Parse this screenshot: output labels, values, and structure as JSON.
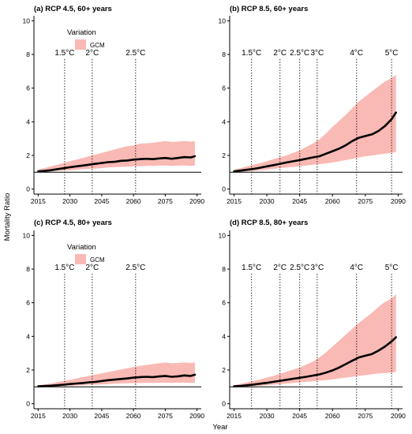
{
  "figure": {
    "shared_xlabel": "Year",
    "shared_ylabel": "Mortality Ratio"
  },
  "colors": {
    "band": "#f9b9b4",
    "line": "#000000",
    "reference": "#000000"
  },
  "chart_data": [
    {
      "type": "line",
      "title": "(a) RCP 4.5, 60+ years",
      "xlim": [
        2013,
        2092
      ],
      "ylim": [
        -0.3,
        10.3
      ],
      "xticks": [
        2015,
        2030,
        2045,
        2060,
        2075,
        2090
      ],
      "yticks": [
        0,
        2,
        4,
        6,
        8,
        10
      ],
      "reference_line": 1,
      "legend": {
        "title": "Variation",
        "entry": "GCM",
        "placement": "top-left"
      },
      "thresholds": [
        {
          "label": "1.5°C",
          "year": 2027.5
        },
        {
          "label": "2°C",
          "year": 2040.5
        },
        {
          "label": "2.5°C",
          "year": 2061
        }
      ],
      "series": [
        {
          "x": [
            2015,
            2018,
            2021,
            2024,
            2027,
            2030,
            2033,
            2036,
            2039,
            2042,
            2045,
            2048,
            2051,
            2054,
            2057,
            2060,
            2063,
            2066,
            2069,
            2072,
            2075,
            2078,
            2081,
            2084,
            2087,
            2089
          ],
          "mean": [
            1.05,
            1.08,
            1.12,
            1.18,
            1.24,
            1.3,
            1.35,
            1.4,
            1.45,
            1.5,
            1.55,
            1.6,
            1.62,
            1.68,
            1.7,
            1.75,
            1.78,
            1.8,
            1.78,
            1.82,
            1.85,
            1.8,
            1.85,
            1.9,
            1.88,
            1.95
          ],
          "lower": [
            1.0,
            1.0,
            1.05,
            1.08,
            1.1,
            1.12,
            1.15,
            1.18,
            1.2,
            1.22,
            1.25,
            1.28,
            1.3,
            1.32,
            1.33,
            1.35,
            1.36,
            1.38,
            1.38,
            1.4,
            1.4,
            1.38,
            1.4,
            1.4,
            1.38,
            1.4
          ],
          "upper": [
            1.15,
            1.25,
            1.35,
            1.45,
            1.55,
            1.65,
            1.75,
            1.85,
            1.95,
            2.05,
            2.15,
            2.25,
            2.35,
            2.45,
            2.55,
            2.6,
            2.7,
            2.72,
            2.75,
            2.8,
            2.85,
            2.8,
            2.82,
            2.85,
            2.82,
            2.85
          ]
        }
      ]
    },
    {
      "type": "line",
      "title": "(b) RCP 8.5, 60+ years",
      "xlim": [
        2013,
        2092
      ],
      "ylim": [
        -0.3,
        10.3
      ],
      "xticks": [
        2015,
        2030,
        2045,
        2060,
        2075,
        2090
      ],
      "yticks": [
        0,
        2,
        4,
        6,
        8,
        10
      ],
      "reference_line": 1,
      "thresholds": [
        {
          "label": "1.5°C",
          "year": 2023
        },
        {
          "label": "2°C",
          "year": 2036
        },
        {
          "label": "2.5°C",
          "year": 2045
        },
        {
          "label": "3°C",
          "year": 2053
        },
        {
          "label": "4°C",
          "year": 2071
        },
        {
          "label": "5°C",
          "year": 2087
        }
      ],
      "series": [
        {
          "x": [
            2015,
            2018,
            2021,
            2024,
            2027,
            2030,
            2033,
            2036,
            2039,
            2042,
            2045,
            2048,
            2051,
            2054,
            2057,
            2060,
            2063,
            2066,
            2069,
            2072,
            2075,
            2078,
            2081,
            2084,
            2087,
            2089
          ],
          "mean": [
            1.05,
            1.1,
            1.15,
            1.2,
            1.27,
            1.35,
            1.42,
            1.5,
            1.58,
            1.65,
            1.72,
            1.8,
            1.88,
            1.95,
            2.1,
            2.25,
            2.4,
            2.6,
            2.85,
            3.05,
            3.15,
            3.25,
            3.45,
            3.75,
            4.15,
            4.55
          ],
          "lower": [
            1.0,
            1.02,
            1.05,
            1.08,
            1.12,
            1.15,
            1.2,
            1.25,
            1.28,
            1.32,
            1.35,
            1.4,
            1.45,
            1.48,
            1.52,
            1.58,
            1.65,
            1.72,
            1.8,
            1.88,
            1.95,
            2.0,
            2.05,
            2.1,
            2.15,
            2.2
          ],
          "upper": [
            1.15,
            1.25,
            1.35,
            1.45,
            1.55,
            1.65,
            1.78,
            1.9,
            2.0,
            2.15,
            2.3,
            2.5,
            2.7,
            2.95,
            3.3,
            3.7,
            4.05,
            4.4,
            4.8,
            5.2,
            5.5,
            5.8,
            6.1,
            6.4,
            6.6,
            6.8
          ]
        }
      ]
    },
    {
      "type": "line",
      "title": "(c) RCP 4.5, 80+ years",
      "xlim": [
        2013,
        2092
      ],
      "ylim": [
        -0.3,
        10.3
      ],
      "xticks": [
        2015,
        2030,
        2045,
        2060,
        2075,
        2090
      ],
      "yticks": [
        0,
        2,
        4,
        6,
        8,
        10
      ],
      "reference_line": 1,
      "legend": {
        "title": "Variation",
        "entry": "GCM",
        "placement": "top-left"
      },
      "thresholds": [
        {
          "label": "1.5°C",
          "year": 2027.5
        },
        {
          "label": "2°C",
          "year": 2040.5
        },
        {
          "label": "2.5°C",
          "year": 2061
        }
      ],
      "series": [
        {
          "x": [
            2015,
            2018,
            2021,
            2024,
            2027,
            2030,
            2033,
            2036,
            2039,
            2042,
            2045,
            2048,
            2051,
            2054,
            2057,
            2060,
            2063,
            2066,
            2069,
            2072,
            2075,
            2078,
            2081,
            2084,
            2087,
            2089
          ],
          "mean": [
            1.03,
            1.05,
            1.07,
            1.1,
            1.13,
            1.17,
            1.2,
            1.23,
            1.27,
            1.3,
            1.35,
            1.4,
            1.43,
            1.47,
            1.5,
            1.55,
            1.58,
            1.6,
            1.58,
            1.62,
            1.65,
            1.6,
            1.63,
            1.68,
            1.65,
            1.72
          ],
          "lower": [
            1.0,
            1.0,
            1.02,
            1.03,
            1.05,
            1.06,
            1.08,
            1.1,
            1.12,
            1.13,
            1.15,
            1.17,
            1.19,
            1.2,
            1.21,
            1.22,
            1.23,
            1.24,
            1.24,
            1.25,
            1.25,
            1.24,
            1.25,
            1.25,
            1.24,
            1.25
          ],
          "upper": [
            1.1,
            1.15,
            1.2,
            1.28,
            1.35,
            1.42,
            1.5,
            1.58,
            1.65,
            1.73,
            1.8,
            1.88,
            1.95,
            2.03,
            2.1,
            2.18,
            2.25,
            2.3,
            2.35,
            2.4,
            2.45,
            2.4,
            2.42,
            2.45,
            2.42,
            2.45
          ]
        }
      ]
    },
    {
      "type": "line",
      "title": "(d) RCP 8.5, 80+ years",
      "xlim": [
        2013,
        2092
      ],
      "ylim": [
        -0.3,
        10.3
      ],
      "xticks": [
        2015,
        2030,
        2045,
        2060,
        2075,
        2090
      ],
      "yticks": [
        0,
        2,
        4,
        6,
        8,
        10
      ],
      "reference_line": 1,
      "thresholds": [
        {
          "label": "1.5°C",
          "year": 2023
        },
        {
          "label": "2°C",
          "year": 2036
        },
        {
          "label": "2.5°C",
          "year": 2045
        },
        {
          "label": "3°C",
          "year": 2053
        },
        {
          "label": "4°C",
          "year": 2071
        },
        {
          "label": "5°C",
          "year": 2087
        }
      ],
      "series": [
        {
          "x": [
            2015,
            2018,
            2021,
            2024,
            2027,
            2030,
            2033,
            2036,
            2039,
            2042,
            2045,
            2048,
            2051,
            2054,
            2057,
            2060,
            2063,
            2066,
            2069,
            2072,
            2075,
            2078,
            2081,
            2084,
            2087,
            2089
          ],
          "mean": [
            1.03,
            1.06,
            1.1,
            1.14,
            1.19,
            1.24,
            1.3,
            1.36,
            1.42,
            1.48,
            1.54,
            1.6,
            1.67,
            1.74,
            1.85,
            1.98,
            2.15,
            2.35,
            2.55,
            2.75,
            2.85,
            2.95,
            3.15,
            3.4,
            3.7,
            3.95
          ],
          "lower": [
            1.0,
            1.0,
            1.02,
            1.04,
            1.07,
            1.1,
            1.13,
            1.16,
            1.2,
            1.23,
            1.27,
            1.3,
            1.33,
            1.37,
            1.4,
            1.45,
            1.5,
            1.55,
            1.6,
            1.65,
            1.7,
            1.75,
            1.8,
            1.82,
            1.85,
            1.9
          ],
          "upper": [
            1.1,
            1.18,
            1.27,
            1.35,
            1.45,
            1.55,
            1.65,
            1.78,
            1.9,
            2.02,
            2.15,
            2.32,
            2.5,
            2.75,
            3.05,
            3.4,
            3.75,
            4.1,
            4.45,
            4.8,
            5.1,
            5.4,
            5.75,
            6.05,
            6.25,
            6.5
          ]
        }
      ]
    }
  ]
}
